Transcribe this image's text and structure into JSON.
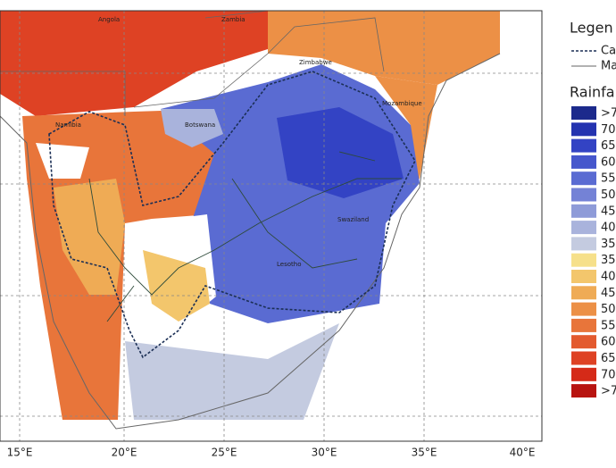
{
  "map": {
    "countries": [
      "Angola",
      "Zambia",
      "Zimbabwe",
      "Mozambique",
      "Namibia",
      "Botswana",
      "Swaziland",
      "Lesotho"
    ],
    "longitudes": [
      "15°E",
      "20°E",
      "25°E",
      "30°E",
      "35°E",
      "40°E"
    ],
    "legend": {
      "title": "Legen",
      "lines": [
        "Ca",
        "Ma"
      ],
      "rainfall_title": "Rainfa",
      "items": [
        {
          "label": ">7",
          "color": "#1c2a8c"
        },
        {
          "label": "70",
          "color": "#2433b0"
        },
        {
          "label": "65",
          "color": "#3343c4"
        },
        {
          "label": "60",
          "color": "#4657cc"
        },
        {
          "label": "55",
          "color": "#5a6bd2"
        },
        {
          "label": "50",
          "color": "#7482d6"
        },
        {
          "label": "45",
          "color": "#8e9bd8"
        },
        {
          "label": "40",
          "color": "#a9b3dc"
        },
        {
          "label": "35",
          "color": "#c4cbe0"
        },
        {
          "label": "35",
          "color": "#f6e08a"
        },
        {
          "label": "40",
          "color": "#f3c66c"
        },
        {
          "label": "45",
          "color": "#efab55"
        },
        {
          "label": "50",
          "color": "#ec9046"
        },
        {
          "label": "55",
          "color": "#e8753a"
        },
        {
          "label": "60",
          "color": "#e35a2e"
        },
        {
          "label": "65",
          "color": "#de4224"
        },
        {
          "label": "70",
          "color": "#d52a18"
        },
        {
          "label": ">7",
          "color": "#b81410"
        }
      ]
    }
  }
}
